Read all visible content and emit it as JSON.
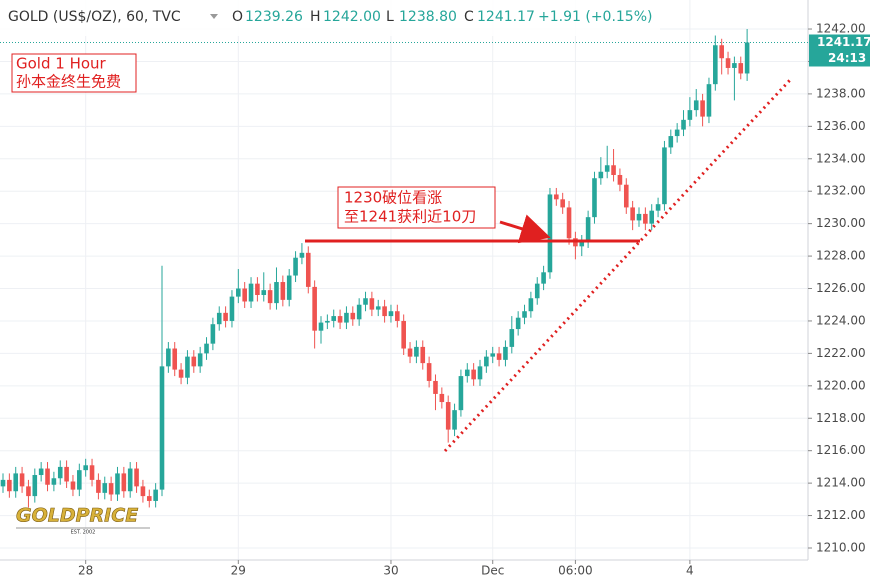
{
  "header": {
    "symbol": "GOLD (US$/OZ), 60, TVC",
    "ohlc": [
      {
        "label": "O",
        "value": "1239.26"
      },
      {
        "label": "H",
        "value": "1242.00"
      },
      {
        "label": "L",
        "value": "1238.80"
      },
      {
        "label": "C",
        "value": "1241.17"
      }
    ],
    "change": "+1.91 (+0.15%)",
    "countdown": "24:13"
  },
  "annotations": {
    "box1": [
      "Gold 1 Hour",
      "孙本金终生免费"
    ],
    "box2": [
      "1230破位看涨",
      "至1241获利近10刀"
    ]
  },
  "logo": {
    "text": "GOLDPRICE",
    "sub": "EST. 2002"
  },
  "chart_data": {
    "type": "candlestick",
    "up_color": "#26a69a",
    "down_color": "#ef5350",
    "grid": true,
    "ylim": [
      1209.26,
      1243.79
    ],
    "yticks": [
      {
        "value": 1210,
        "label": "1210.00"
      },
      {
        "value": 1212,
        "label": "1212.00"
      },
      {
        "value": 1214,
        "label": "1214.00"
      },
      {
        "value": 1216,
        "label": "1216.00"
      },
      {
        "value": 1218,
        "label": "1218.00"
      },
      {
        "value": 1220,
        "label": "1220.00"
      },
      {
        "value": 1222,
        "label": "1222.00"
      },
      {
        "value": 1224,
        "label": "1224.00"
      },
      {
        "value": 1226,
        "label": "1226.00"
      },
      {
        "value": 1228,
        "label": "1228.00"
      },
      {
        "value": 1230,
        "label": "1230.00"
      },
      {
        "value": 1232,
        "label": "1232.00"
      },
      {
        "value": 1234,
        "label": "1234.00"
      },
      {
        "value": 1236,
        "label": "1236.00"
      },
      {
        "value": 1238,
        "label": "1238.00"
      },
      {
        "value": 1240,
        "label": "1240.00"
      },
      {
        "value": 1242,
        "label": "1242.00"
      }
    ],
    "categories": [
      null,
      null,
      null,
      null,
      null,
      null,
      null,
      null,
      null,
      null,
      null,
      null,
      null,
      "28",
      null,
      null,
      null,
      null,
      null,
      null,
      null,
      null,
      null,
      null,
      null,
      null,
      null,
      null,
      null,
      null,
      null,
      null,
      null,
      null,
      null,
      null,
      null,
      "29",
      null,
      null,
      null,
      null,
      null,
      null,
      null,
      null,
      null,
      null,
      null,
      null,
      null,
      null,
      null,
      null,
      null,
      null,
      null,
      null,
      null,
      null,
      null,
      "30",
      null,
      null,
      null,
      null,
      null,
      null,
      null,
      null,
      null,
      null,
      null,
      null,
      null,
      null,
      null,
      "Dec",
      null,
      null,
      null,
      null,
      null,
      null,
      null,
      null,
      null,
      null,
      null,
      null,
      "06:00",
      null,
      null,
      null,
      null,
      null,
      null,
      null,
      null,
      null,
      null,
      null,
      null,
      null,
      null,
      null,
      null,
      null,
      "4",
      null,
      null,
      null,
      null,
      null,
      null,
      null,
      null,
      null
    ],
    "candles": [
      [
        1213.8,
        1214.6,
        1213.4,
        1214.2
      ],
      [
        1214.2,
        1214.6,
        1213.1,
        1213.5
      ],
      [
        1213.5,
        1215.0,
        1213.1,
        1214.6
      ],
      [
        1214.6,
        1215.0,
        1213.4,
        1213.8
      ],
      [
        1213.8,
        1214.2,
        1212.5,
        1213.2
      ],
      [
        1213.2,
        1214.9,
        1212.8,
        1214.5
      ],
      [
        1214.5,
        1215.3,
        1214.1,
        1214.9
      ],
      [
        1214.9,
        1215.3,
        1213.5,
        1213.9
      ],
      [
        1213.9,
        1214.7,
        1213.5,
        1214.3
      ],
      [
        1214.3,
        1215.4,
        1213.9,
        1215.0
      ],
      [
        1215.0,
        1215.4,
        1213.7,
        1214.1
      ],
      [
        1214.1,
        1214.5,
        1213.2,
        1213.6
      ],
      [
        1213.6,
        1215.2,
        1213.2,
        1214.8
      ],
      [
        1214.8,
        1215.5,
        1214.4,
        1215.1
      ],
      [
        1215.1,
        1215.5,
        1213.8,
        1214.2
      ],
      [
        1214.2,
        1214.6,
        1213.0,
        1213.4
      ],
      [
        1213.4,
        1214.4,
        1213.0,
        1214.0
      ],
      [
        1214.0,
        1214.4,
        1212.9,
        1213.3
      ],
      [
        1213.3,
        1215.0,
        1212.9,
        1214.6
      ],
      [
        1214.6,
        1215.0,
        1213.1,
        1213.5
      ],
      [
        1213.5,
        1215.3,
        1213.1,
        1214.9
      ],
      [
        1214.9,
        1215.3,
        1213.4,
        1213.8
      ],
      [
        1213.8,
        1214.2,
        1212.8,
        1213.2
      ],
      [
        1213.2,
        1213.6,
        1212.5,
        1212.9
      ],
      [
        1212.9,
        1214.0,
        1212.5,
        1213.6
      ],
      [
        1213.6,
        1227.4,
        1213.2,
        1221.2
      ],
      [
        1221.2,
        1222.7,
        1220.8,
        1222.3
      ],
      [
        1222.3,
        1222.7,
        1220.6,
        1221.0
      ],
      [
        1221.0,
        1221.4,
        1220.1,
        1220.5
      ],
      [
        1220.5,
        1222.2,
        1220.1,
        1221.8
      ],
      [
        1221.8,
        1222.2,
        1220.8,
        1221.2
      ],
      [
        1221.2,
        1222.4,
        1220.8,
        1222.0
      ],
      [
        1222.0,
        1223.0,
        1221.6,
        1222.6
      ],
      [
        1222.6,
        1224.2,
        1222.2,
        1223.8
      ],
      [
        1223.8,
        1224.9,
        1223.4,
        1224.5
      ],
      [
        1224.5,
        1224.9,
        1223.6,
        1224.0
      ],
      [
        1224.0,
        1225.9,
        1223.6,
        1225.5
      ],
      [
        1225.5,
        1227.2,
        1225.1,
        1226.0
      ],
      [
        1226.0,
        1226.4,
        1224.8,
        1225.2
      ],
      [
        1225.2,
        1226.7,
        1224.8,
        1226.3
      ],
      [
        1226.3,
        1226.7,
        1225.2,
        1225.6
      ],
      [
        1225.6,
        1227.0,
        1225.2,
        1225.9
      ],
      [
        1225.9,
        1226.3,
        1224.7,
        1225.1
      ],
      [
        1225.1,
        1227.3,
        1224.7,
        1226.4
      ],
      [
        1226.4,
        1226.8,
        1224.9,
        1225.3
      ],
      [
        1225.3,
        1227.2,
        1224.9,
        1226.8
      ],
      [
        1226.8,
        1228.3,
        1226.4,
        1227.9
      ],
      [
        1227.9,
        1228.8,
        1227.5,
        1228.2
      ],
      [
        1228.2,
        1228.6,
        1225.7,
        1226.1
      ],
      [
        1226.1,
        1226.5,
        1222.3,
        1223.4
      ],
      [
        1223.4,
        1224.3,
        1222.6,
        1223.9
      ],
      [
        1223.9,
        1224.4,
        1223.5,
        1224.0
      ],
      [
        1224.0,
        1224.7,
        1223.6,
        1224.3
      ],
      [
        1224.3,
        1224.7,
        1223.5,
        1223.9
      ],
      [
        1223.9,
        1224.9,
        1223.5,
        1224.5
      ],
      [
        1224.5,
        1224.9,
        1223.7,
        1224.1
      ],
      [
        1224.1,
        1225.4,
        1223.7,
        1225.0
      ],
      [
        1225.0,
        1225.8,
        1224.6,
        1225.4
      ],
      [
        1225.4,
        1225.8,
        1224.3,
        1224.7
      ],
      [
        1224.7,
        1225.3,
        1224.3,
        1224.9
      ],
      [
        1224.9,
        1225.3,
        1223.9,
        1224.3
      ],
      [
        1224.3,
        1225.0,
        1223.9,
        1224.6
      ],
      [
        1224.6,
        1225.0,
        1223.6,
        1224.0
      ],
      [
        1224.0,
        1224.4,
        1221.9,
        1222.3
      ],
      [
        1222.3,
        1222.7,
        1221.4,
        1221.8
      ],
      [
        1221.8,
        1222.8,
        1221.4,
        1222.4
      ],
      [
        1222.4,
        1222.8,
        1221.0,
        1221.4
      ],
      [
        1221.4,
        1221.8,
        1219.9,
        1220.3
      ],
      [
        1220.3,
        1220.7,
        1218.5,
        1219.5
      ],
      [
        1219.5,
        1219.9,
        1218.6,
        1219.0
      ],
      [
        1219.0,
        1219.4,
        1216.5,
        1217.3
      ],
      [
        1217.3,
        1218.9,
        1216.9,
        1218.5
      ],
      [
        1218.5,
        1221.0,
        1218.1,
        1220.6
      ],
      [
        1220.6,
        1221.4,
        1220.2,
        1221.0
      ],
      [
        1221.0,
        1221.4,
        1220.0,
        1220.4
      ],
      [
        1220.4,
        1221.6,
        1220.0,
        1221.2
      ],
      [
        1221.2,
        1222.2,
        1220.8,
        1221.8
      ],
      [
        1221.8,
        1222.4,
        1221.4,
        1222.0
      ],
      [
        1222.0,
        1222.4,
        1221.2,
        1221.6
      ],
      [
        1221.6,
        1222.8,
        1221.2,
        1222.4
      ],
      [
        1222.4,
        1224.3,
        1222.0,
        1223.5
      ],
      [
        1223.5,
        1224.6,
        1223.1,
        1224.2
      ],
      [
        1224.2,
        1225.0,
        1223.8,
        1224.6
      ],
      [
        1224.6,
        1225.8,
        1224.2,
        1225.4
      ],
      [
        1225.4,
        1226.7,
        1225.0,
        1226.3
      ],
      [
        1226.3,
        1227.4,
        1225.9,
        1227.0
      ],
      [
        1227.0,
        1232.2,
        1226.6,
        1231.8
      ],
      [
        1231.8,
        1232.2,
        1231.1,
        1231.5
      ],
      [
        1231.5,
        1231.9,
        1230.6,
        1231.0
      ],
      [
        1231.0,
        1231.4,
        1228.7,
        1229.1
      ],
      [
        1229.1,
        1229.5,
        1227.8,
        1228.6
      ],
      [
        1228.6,
        1229.3,
        1228.0,
        1228.9
      ],
      [
        1228.9,
        1230.8,
        1228.5,
        1230.4
      ],
      [
        1230.4,
        1233.2,
        1230.0,
        1232.8
      ],
      [
        1232.8,
        1234.1,
        1232.4,
        1233.2
      ],
      [
        1233.2,
        1234.8,
        1232.8,
        1233.6
      ],
      [
        1233.6,
        1234.6,
        1232.6,
        1233.0
      ],
      [
        1233.0,
        1233.4,
        1232.0,
        1232.4
      ],
      [
        1232.4,
        1232.8,
        1230.6,
        1231.0
      ],
      [
        1231.0,
        1231.4,
        1229.6,
        1230.2
      ],
      [
        1230.2,
        1231.0,
        1229.8,
        1230.6
      ],
      [
        1230.6,
        1231.0,
        1229.6,
        1230.0
      ],
      [
        1230.0,
        1231.2,
        1229.6,
        1230.8
      ],
      [
        1230.8,
        1231.6,
        1230.4,
        1231.2
      ],
      [
        1231.2,
        1235.1,
        1230.8,
        1234.7
      ],
      [
        1234.7,
        1235.8,
        1234.3,
        1235.4
      ],
      [
        1235.4,
        1236.2,
        1235.0,
        1235.8
      ],
      [
        1235.8,
        1237.0,
        1235.4,
        1236.4
      ],
      [
        1236.4,
        1237.8,
        1236.0,
        1237.0
      ],
      [
        1237.0,
        1238.3,
        1236.6,
        1237.6
      ],
      [
        1237.6,
        1238.0,
        1236.0,
        1236.6
      ],
      [
        1236.6,
        1239.0,
        1236.2,
        1238.6
      ],
      [
        1238.6,
        1241.6,
        1238.2,
        1241.0
      ],
      [
        1241.0,
        1241.4,
        1239.2,
        1240.2
      ],
      [
        1240.2,
        1240.6,
        1239.2,
        1239.6
      ],
      [
        1239.6,
        1240.3,
        1237.6,
        1239.9
      ],
      [
        1239.9,
        1240.3,
        1238.9,
        1239.26
      ],
      [
        1239.26,
        1242.0,
        1238.8,
        1241.17
      ]
    ]
  }
}
